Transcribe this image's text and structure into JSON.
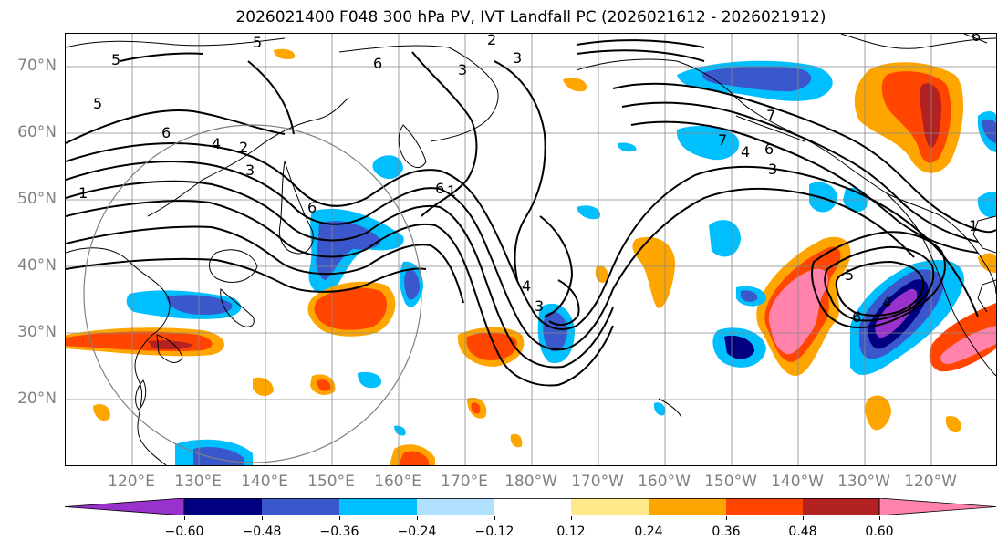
{
  "title": "2026021400 F048 300 hPa PV, IVT Landfall PC (2026021612 - 2026021912)",
  "lat_labels": [
    "70°N",
    "60°N",
    "50°N",
    "40°N",
    "30°N",
    "20°N"
  ],
  "lon_labels": [
    "120°E",
    "130°E",
    "140°E",
    "150°E",
    "160°E",
    "170°E",
    "180°W",
    "170°W",
    "160°W",
    "150°W",
    "140°W",
    "130°W",
    "120°W"
  ],
  "colorbar": {
    "colors": [
      "#9932cc",
      "#000080",
      "#3a57cc",
      "#00bfff",
      "#b0e2ff",
      "#ffffff",
      "#ffe98a",
      "#ffa500",
      "#ff4500",
      "#b22222",
      "#ff83aa"
    ],
    "tick_labels": [
      "−0.60",
      "−0.48",
      "−0.36",
      "−0.24",
      "−0.12",
      "0.12",
      "0.24",
      "0.36",
      "0.48",
      "0.60"
    ],
    "under_color": "#9932cc",
    "over_color": "#ff83aa"
  },
  "contour_labels": [
    "5",
    "5",
    "5",
    "6",
    "6",
    "1",
    "2",
    "2",
    "3",
    "3",
    "7",
    "6",
    "4",
    "3",
    "7",
    "6",
    "4",
    "3",
    "1",
    "6",
    "1",
    "5",
    "4",
    "6",
    "6",
    "4",
    "3"
  ]
}
